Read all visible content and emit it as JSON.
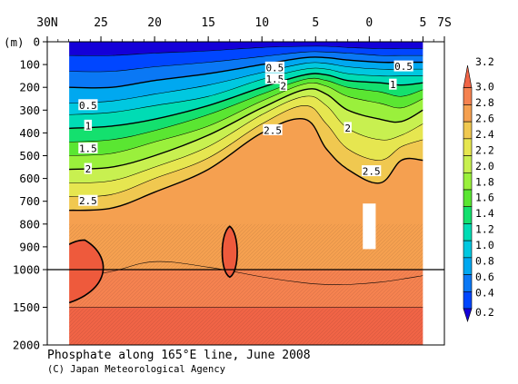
{
  "chart_data": {
    "type": "heatmap",
    "title": "Phosphate along 165°E line, June 2008",
    "credit": "(C) Japan Meteorological Agency",
    "x_axis": {
      "ticks": [
        {
          "value": 30,
          "label": "30N"
        },
        {
          "value": 25,
          "label": "25"
        },
        {
          "value": 20,
          "label": "20"
        },
        {
          "value": 15,
          "label": "15"
        },
        {
          "value": 10,
          "label": "10"
        },
        {
          "value": 5,
          "label": "5"
        },
        {
          "value": 0,
          "label": "0"
        },
        {
          "value": -5,
          "label": "5"
        },
        {
          "value": -7,
          "label": "7S"
        }
      ],
      "range": [
        30,
        -7
      ],
      "data_range": [
        28,
        -5
      ]
    },
    "y_axis": {
      "unit_label": "(m)",
      "ticks": [
        0,
        100,
        200,
        300,
        400,
        500,
        600,
        700,
        800,
        900,
        1000,
        1500,
        2000
      ],
      "range": [
        0,
        2000
      ],
      "break_at": 1000
    },
    "colorbar": {
      "levels": [
        0.2,
        0.4,
        0.6,
        0.8,
        1.0,
        1.2,
        1.4,
        1.6,
        1.8,
        2.0,
        2.2,
        2.4,
        2.6,
        2.8,
        3.0,
        3.2
      ],
      "labels": [
        "0.2",
        "0.4",
        "0.6",
        "0.8",
        "1.0",
        "1.2",
        "1.4",
        "1.6",
        "1.8",
        "2.0",
        "2.2",
        "2.4",
        "2.6",
        "2.8",
        "3.0",
        "3.2"
      ],
      "colors": [
        "#1400d8",
        "#0046ff",
        "#0a78f5",
        "#00a8f0",
        "#00c8e0",
        "#00dcb4",
        "#14e06e",
        "#5ae632",
        "#9af03c",
        "#c8f050",
        "#e6e650",
        "#f0c850",
        "#f5a050",
        "#f58250",
        "#f06446"
      ]
    },
    "field_profiles": [
      {
        "lat": 28,
        "depths": [
          0,
          60,
          130,
          200,
          270,
          320,
          380,
          440,
          500,
          560,
          620,
          680,
          740,
          1000,
          1500,
          2000
        ]
      },
      {
        "lat": 24,
        "depths": [
          0,
          60,
          130,
          200,
          260,
          310,
          370,
          430,
          490,
          550,
          610,
          670,
          730,
          1000,
          1500,
          2000
        ]
      },
      {
        "lat": 20,
        "depths": [
          0,
          50,
          110,
          170,
          230,
          280,
          340,
          390,
          440,
          500,
          550,
          600,
          660,
          1000,
          1500,
          2000
        ]
      },
      {
        "lat": 15,
        "depths": [
          0,
          40,
          90,
          140,
          190,
          240,
          280,
          320,
          370,
          410,
          460,
          510,
          560,
          1000,
          1500,
          2000
        ]
      },
      {
        "lat": 10,
        "depths": [
          0,
          25,
          65,
          100,
          135,
          165,
          200,
          230,
          260,
          290,
          320,
          360,
          400,
          1000,
          1500,
          2000
        ]
      },
      {
        "lat": 6,
        "depths": [
          0,
          20,
          45,
          70,
          95,
          120,
          145,
          165,
          185,
          210,
          240,
          280,
          340,
          1000,
          1500,
          2000
        ]
      },
      {
        "lat": 4,
        "depths": [
          0,
          20,
          45,
          70,
          95,
          120,
          145,
          170,
          195,
          230,
          280,
          360,
          470,
          1000,
          1500,
          2000
        ]
      },
      {
        "lat": 2,
        "depths": [
          0,
          25,
          50,
          80,
          110,
          140,
          170,
          200,
          240,
          300,
          380,
          470,
          560,
          1000,
          1500,
          2000
        ]
      },
      {
        "lat": -1,
        "depths": [
          0,
          30,
          60,
          90,
          120,
          150,
          180,
          220,
          270,
          340,
          430,
          520,
          620,
          1000,
          1500,
          2000
        ]
      },
      {
        "lat": -3,
        "depths": [
          0,
          30,
          60,
          90,
          120,
          150,
          190,
          240,
          290,
          350,
          410,
          460,
          520,
          1000,
          1500,
          2000
        ]
      },
      {
        "lat": -5,
        "depths": [
          0,
          30,
          60,
          90,
          120,
          150,
          180,
          210,
          250,
          300,
          360,
          430,
          520,
          1000,
          1500,
          2000
        ]
      }
    ],
    "contour_labels": [
      {
        "text": "0.5",
        "lat": 26.2,
        "depth": 280
      },
      {
        "text": "1",
        "lat": 26.2,
        "depth": 370
      },
      {
        "text": "1.5",
        "lat": 26.2,
        "depth": 470
      },
      {
        "text": "2",
        "lat": 26.2,
        "depth": 560
      },
      {
        "text": "2.5",
        "lat": 26.2,
        "depth": 700
      },
      {
        "text": "0.5",
        "lat": 8.8,
        "depth": 115
      },
      {
        "text": "1.5",
        "lat": 8.8,
        "depth": 165
      },
      {
        "text": "2",
        "lat": 8.0,
        "depth": 195
      },
      {
        "text": "2.5",
        "lat": 9.0,
        "depth": 390
      },
      {
        "text": "2",
        "lat": 2.0,
        "depth": 380
      },
      {
        "text": "2.5",
        "lat": -0.2,
        "depth": 570
      },
      {
        "text": "0.5",
        "lat": -3.2,
        "depth": 110
      },
      {
        "text": "1",
        "lat": -2.2,
        "depth": 190
      }
    ],
    "missing_data_box": {
      "lat_from": 0.6,
      "lat_to": -0.6,
      "depth_from": 710,
      "depth_to": 910
    },
    "highs_3_0": [
      {
        "lat_center": 26.5,
        "depth_top": 870,
        "bottom_depth": 1500
      },
      {
        "lat_center": 13.0,
        "depth_top": 810,
        "bottom_depth": 1100
      }
    ]
  }
}
